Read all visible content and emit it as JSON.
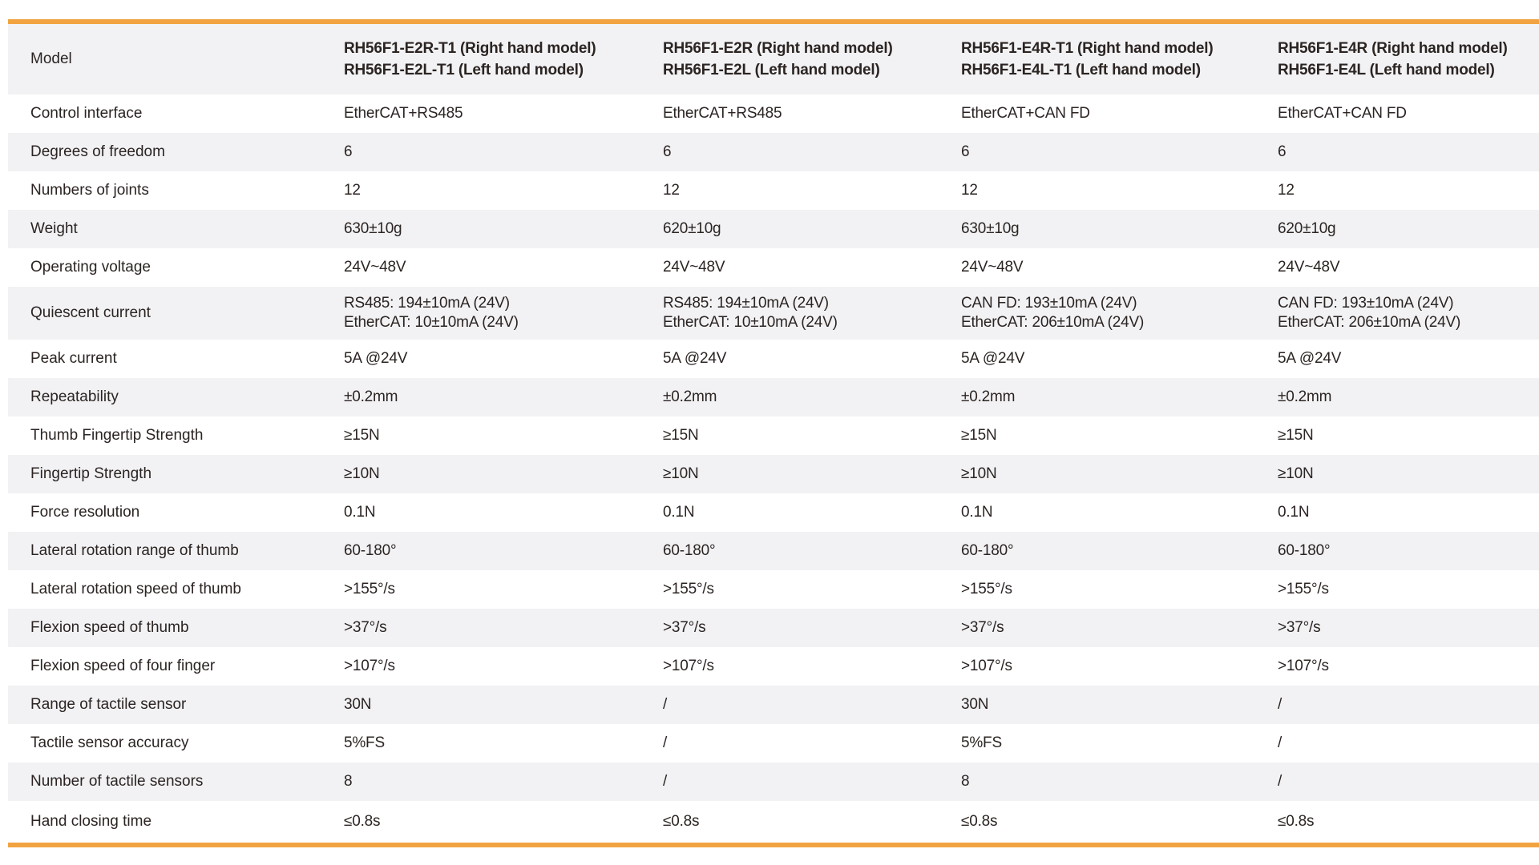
{
  "theme": {
    "accent_orange": "#F2A341",
    "stripe_gray": "#F2F2F4",
    "text_dark": "#2B2422"
  },
  "table": {
    "header": {
      "label": "Model",
      "columns": [
        {
          "lines": [
            "RH56F1-E2R-T1 (Right hand model)",
            "RH56F1-E2L-T1 (Left hand model)"
          ]
        },
        {
          "lines": [
            "RH56F1-E2R (Right hand model)",
            "RH56F1-E2L (Left hand model)"
          ]
        },
        {
          "lines": [
            "RH56F1-E4R-T1 (Right hand model)",
            "RH56F1-E4L-T1 (Left hand model)"
          ]
        },
        {
          "lines": [
            "RH56F1-E4R (Right hand model)",
            "RH56F1-E4L (Left hand model)"
          ]
        }
      ]
    },
    "rows": [
      {
        "label": "Control interface",
        "values": [
          "EtherCAT+RS485",
          "EtherCAT+RS485",
          "EtherCAT+CAN FD",
          "EtherCAT+CAN FD"
        ]
      },
      {
        "label": "Degrees of freedom",
        "values": [
          "6",
          "6",
          "6",
          "6"
        ]
      },
      {
        "label": "Numbers of joints",
        "values": [
          "12",
          "12",
          "12",
          "12"
        ]
      },
      {
        "label": "Weight",
        "values": [
          "630±10g",
          "620±10g",
          "630±10g",
          "620±10g"
        ]
      },
      {
        "label": "Operating voltage",
        "values": [
          "24V~48V",
          "24V~48V",
          "24V~48V",
          "24V~48V"
        ]
      },
      {
        "label": "Quiescent current",
        "values": [
          [
            "RS485: 194±10mA (24V)",
            "EtherCAT: 10±10mA (24V)"
          ],
          [
            "RS485: 194±10mA (24V)",
            "EtherCAT: 10±10mA (24V)"
          ],
          [
            "CAN FD: 193±10mA (24V)",
            "EtherCAT: 206±10mA (24V)"
          ],
          [
            "CAN FD: 193±10mA (24V)",
            "EtherCAT: 206±10mA (24V)"
          ]
        ]
      },
      {
        "label": "Peak current",
        "values": [
          "5A @24V",
          "5A @24V",
          "5A @24V",
          "5A @24V"
        ]
      },
      {
        "label": "Repeatability",
        "values": [
          "±0.2mm",
          "±0.2mm",
          "±0.2mm",
          "±0.2mm"
        ]
      },
      {
        "label": "Thumb Fingertip Strength",
        "values": [
          "≥15N",
          "≥15N",
          "≥15N",
          "≥15N"
        ]
      },
      {
        "label": "Fingertip Strength",
        "values": [
          "≥10N",
          "≥10N",
          "≥10N",
          "≥10N"
        ]
      },
      {
        "label": "Force resolution",
        "values": [
          "0.1N",
          "0.1N",
          "0.1N",
          "0.1N"
        ]
      },
      {
        "label": "Lateral rotation range of thumb",
        "values": [
          "60-180°",
          "60-180°",
          "60-180°",
          "60-180°"
        ]
      },
      {
        "label": "Lateral rotation speed of thumb",
        "values": [
          ">155°/s",
          ">155°/s",
          ">155°/s",
          ">155°/s"
        ]
      },
      {
        "label": "Flexion speed of thumb",
        "values": [
          ">37°/s",
          ">37°/s",
          ">37°/s",
          ">37°/s"
        ]
      },
      {
        "label": "Flexion speed of four finger",
        "values": [
          ">107°/s",
          ">107°/s",
          ">107°/s",
          ">107°/s"
        ]
      },
      {
        "label": "Range of tactile sensor",
        "values": [
          "30N",
          "/",
          "30N",
          "/"
        ]
      },
      {
        "label": "Tactile sensor accuracy",
        "values": [
          "5%FS",
          "/",
          "5%FS",
          "/"
        ]
      },
      {
        "label": "Number of tactile sensors",
        "values": [
          "8",
          "/",
          "8",
          "/"
        ]
      },
      {
        "label": "Hand closing time",
        "values": [
          "≤0.8s",
          "≤0.8s",
          "≤0.8s",
          "≤0.8s"
        ]
      }
    ]
  }
}
